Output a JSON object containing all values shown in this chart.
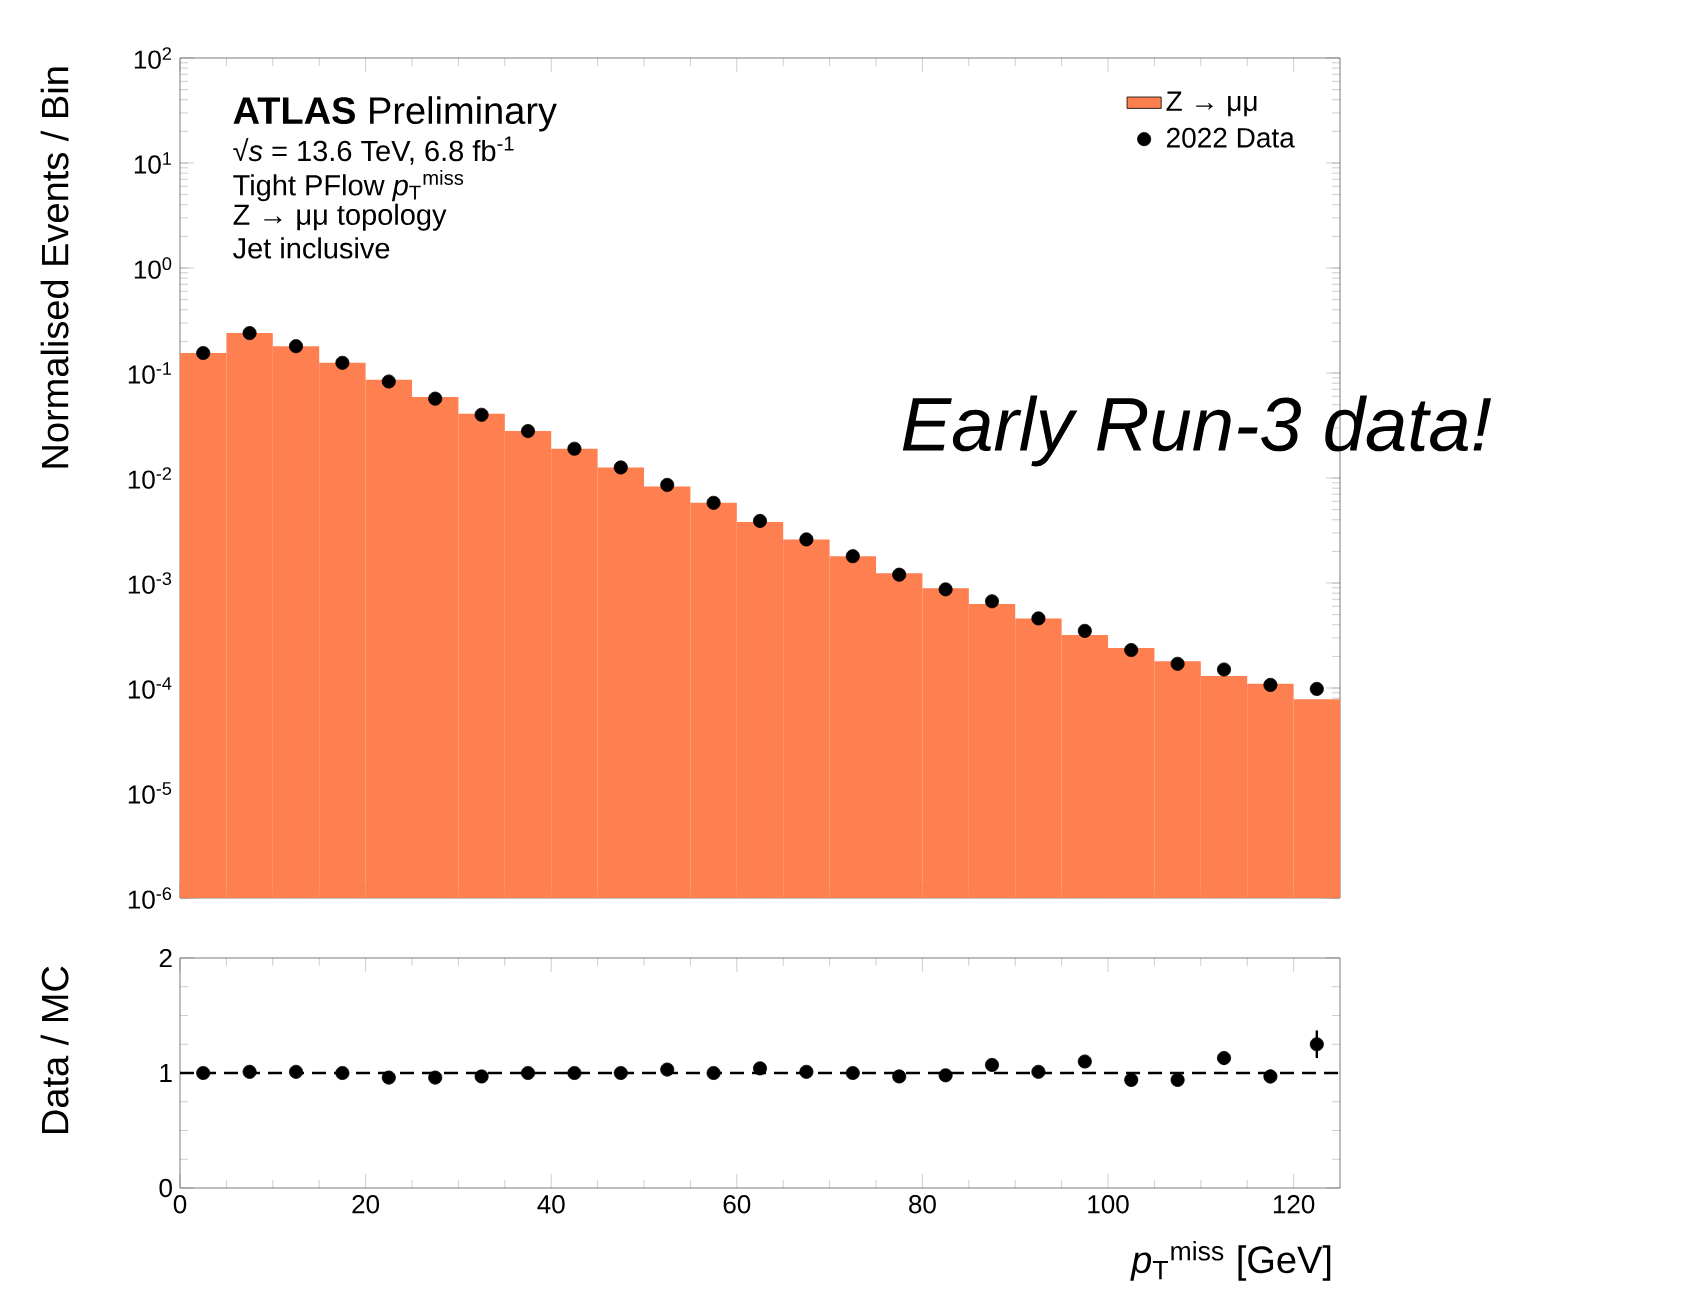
{
  "chart_data": [
    {
      "type": "histogram",
      "ylabel": "Normalised Events / Bin",
      "bins": [
        0,
        5,
        10,
        15,
        20,
        25,
        30,
        35,
        40,
        45,
        50,
        55,
        60,
        65,
        70,
        75,
        80,
        85,
        90,
        95,
        100,
        105,
        110,
        115,
        120,
        125
      ],
      "series": [
        {
          "name": "Z → μμ",
          "type": "histogram",
          "color": "#fe7f4f",
          "values": [
            0.155,
            0.24,
            0.18,
            0.125,
            0.086,
            0.059,
            0.041,
            0.028,
            0.019,
            0.0126,
            0.0083,
            0.0058,
            0.0038,
            0.0026,
            0.0018,
            0.00124,
            0.00089,
            0.00063,
            0.00046,
            0.00032,
            0.00024,
            0.00018,
            0.00013,
            0.00011,
            7.8e-05
          ]
        },
        {
          "name": "2022 Data",
          "type": "scatter",
          "color": "#000000",
          "x": [
            2.5,
            7.5,
            12.5,
            17.5,
            22.5,
            27.5,
            32.5,
            37.5,
            42.5,
            47.5,
            52.5,
            57.5,
            62.5,
            67.5,
            72.5,
            77.5,
            82.5,
            87.5,
            92.5,
            97.5,
            102.5,
            107.5,
            112.5,
            117.5,
            122.5
          ],
          "values": [
            0.155,
            0.24,
            0.18,
            0.125,
            0.083,
            0.057,
            0.04,
            0.028,
            0.019,
            0.0126,
            0.0086,
            0.0058,
            0.0039,
            0.0026,
            0.0018,
            0.0012,
            0.00087,
            0.00067,
            0.00046,
            0.00035,
            0.00023,
            0.00017,
            0.00015,
            0.000107,
            9.8e-05
          ]
        }
      ],
      "log": "y",
      "legend": "top right",
      "tick_labels": "y",
      "xlim": [
        0,
        125
      ],
      "xticks": [
        0,
        20,
        40,
        60,
        80,
        100,
        120
      ],
      "ylim": [
        1e-06,
        100
      ],
      "yticks": [
        {
          "value": 1e-06,
          "label": "10$^{-6}$"
        },
        {
          "value": 1e-05,
          "label": "10$^{-5}$"
        },
        {
          "value": 0.0001,
          "label": "10$^{-4}$"
        },
        {
          "value": 0.001,
          "label": "10$^{-3}$"
        },
        {
          "value": 0.01,
          "label": "10$^{-2}$"
        },
        {
          "value": 0.1,
          "label": "10$^{-1}$"
        },
        {
          "value": 1,
          "label": "10$^{0}$"
        },
        {
          "value": 10,
          "label": "10$^{1}$"
        },
        {
          "value": 100,
          "label": "10$^{2}$"
        }
      ],
      "annotations": [
        "**ATLAS** Preliminary",
        "√*s* = 13.6 TeV, 6.8 fb$^{-1}$",
        "Tight PFlow *p*$_{T}$$^{miss}$",
        "Z → μμ topology",
        "Jet inclusive",
        "Early Run-3 data!"
      ]
    },
    {
      "type": "scatter",
      "xlabel": "*p*$_{T}$$^{miss}$ [GeV]",
      "ylabel": "Data / MC",
      "color": "#000000",
      "x": [
        2.5,
        7.5,
        12.5,
        17.5,
        22.5,
        27.5,
        32.5,
        37.5,
        42.5,
        47.5,
        52.5,
        57.5,
        62.5,
        67.5,
        72.5,
        77.5,
        82.5,
        87.5,
        92.5,
        97.5,
        102.5,
        107.5,
        112.5,
        117.5,
        122.5
      ],
      "values": [
        1.0,
        1.01,
        1.01,
        1.0,
        0.96,
        0.96,
        0.97,
        1.0,
        1.0,
        1.0,
        1.03,
        1.0,
        1.04,
        1.01,
        1.0,
        0.97,
        0.98,
        1.07,
        1.01,
        1.1,
        0.94,
        0.94,
        1.13,
        0.97,
        1.25
      ],
      "errors": [
        null,
        null,
        null,
        null,
        null,
        null,
        null,
        null,
        null,
        null,
        null,
        null,
        null,
        null,
        null,
        null,
        null,
        null,
        null,
        null,
        null,
        null,
        0.06,
        0.06,
        0.12
      ],
      "xlim": [
        0,
        125
      ],
      "xticks": [
        0,
        20,
        40,
        60,
        80,
        100,
        120
      ],
      "ylim": [
        0,
        2
      ],
      "yticks": [
        0,
        1,
        2
      ],
      "ref_lines": [
        {
          "axis": "y",
          "value": 1,
          "line_style": "dashed",
          "color": "#000000"
        }
      ]
    }
  ]
}
